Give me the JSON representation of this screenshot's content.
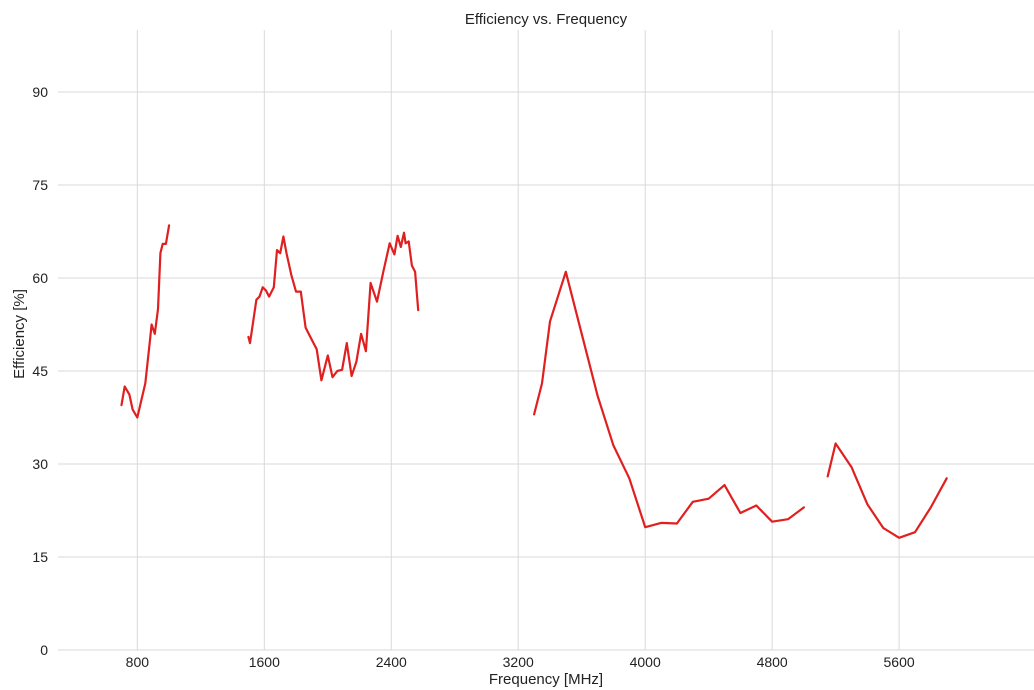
{
  "chart_data": {
    "type": "line",
    "title": "Efficiency vs. Frequency",
    "xlabel": "Frequency [MHz]",
    "ylabel": "Efficiency [%]",
    "xlim": [
      300,
      6450
    ],
    "ylim": [
      0,
      100
    ],
    "xticks": [
      800,
      1600,
      2400,
      3200,
      4000,
      4800,
      5600
    ],
    "yticks": [
      0,
      15,
      30,
      45,
      60,
      75,
      90
    ],
    "grid": true,
    "line_color": "#e02020",
    "series": [
      {
        "points": [
          [
            700,
            39.5
          ],
          [
            720,
            42.5
          ],
          [
            750,
            41.2
          ],
          [
            770,
            38.8
          ],
          [
            800,
            37.5
          ],
          [
            850,
            43
          ],
          [
            880,
            50
          ],
          [
            890,
            52.5
          ],
          [
            910,
            51
          ],
          [
            930,
            55
          ],
          [
            945,
            64
          ],
          [
            960,
            65.5
          ],
          [
            980,
            65.5
          ],
          [
            1000,
            68.5
          ]
        ]
      },
      {
        "points": [
          [
            1500,
            50.5
          ],
          [
            1510,
            49.5
          ],
          [
            1530,
            53
          ],
          [
            1550,
            56.5
          ],
          [
            1570,
            57
          ],
          [
            1590,
            58.5
          ],
          [
            1610,
            58
          ],
          [
            1630,
            57
          ],
          [
            1660,
            58.5
          ],
          [
            1680,
            64.5
          ],
          [
            1700,
            64
          ],
          [
            1720,
            66.7
          ],
          [
            1740,
            64
          ],
          [
            1770,
            60.5
          ],
          [
            1800,
            57.8
          ],
          [
            1830,
            57.8
          ],
          [
            1860,
            52
          ],
          [
            1890,
            50.5
          ],
          [
            1930,
            48.5
          ],
          [
            1960,
            43.5
          ],
          [
            2000,
            47.5
          ],
          [
            2030,
            44
          ],
          [
            2060,
            45
          ],
          [
            2090,
            45.2
          ],
          [
            2120,
            49.5
          ],
          [
            2150,
            44.2
          ],
          [
            2180,
            46.5
          ],
          [
            2210,
            51
          ],
          [
            2240,
            48.2
          ],
          [
            2270,
            59.2
          ],
          [
            2310,
            56.2
          ],
          [
            2350,
            61
          ],
          [
            2390,
            65.6
          ],
          [
            2420,
            63.8
          ],
          [
            2440,
            66.8
          ],
          [
            2460,
            65
          ],
          [
            2480,
            67.3
          ],
          [
            2490,
            65.6
          ],
          [
            2510,
            65.9
          ],
          [
            2530,
            62
          ],
          [
            2550,
            61
          ],
          [
            2570,
            54.8
          ]
        ]
      },
      {
        "points": [
          [
            3300,
            38
          ],
          [
            3350,
            43
          ],
          [
            3400,
            53
          ],
          [
            3500,
            61
          ],
          [
            3600,
            51
          ],
          [
            3700,
            41
          ],
          [
            3800,
            33
          ],
          [
            3900,
            27.7
          ],
          [
            4000,
            19.8
          ],
          [
            4100,
            20.5
          ],
          [
            4200,
            20.4
          ],
          [
            4300,
            23.9
          ],
          [
            4400,
            24.4
          ],
          [
            4500,
            26.6
          ],
          [
            4600,
            22.1
          ],
          [
            4700,
            23.3
          ],
          [
            4800,
            20.7
          ],
          [
            4900,
            21.1
          ],
          [
            5000,
            23
          ]
        ]
      },
      {
        "points": [
          [
            5150,
            28
          ],
          [
            5200,
            33.3
          ],
          [
            5300,
            29.5
          ],
          [
            5400,
            23.5
          ],
          [
            5500,
            19.7
          ],
          [
            5600,
            18.1
          ],
          [
            5700,
            19
          ],
          [
            5800,
            23
          ],
          [
            5900,
            27.7
          ]
        ]
      }
    ]
  }
}
